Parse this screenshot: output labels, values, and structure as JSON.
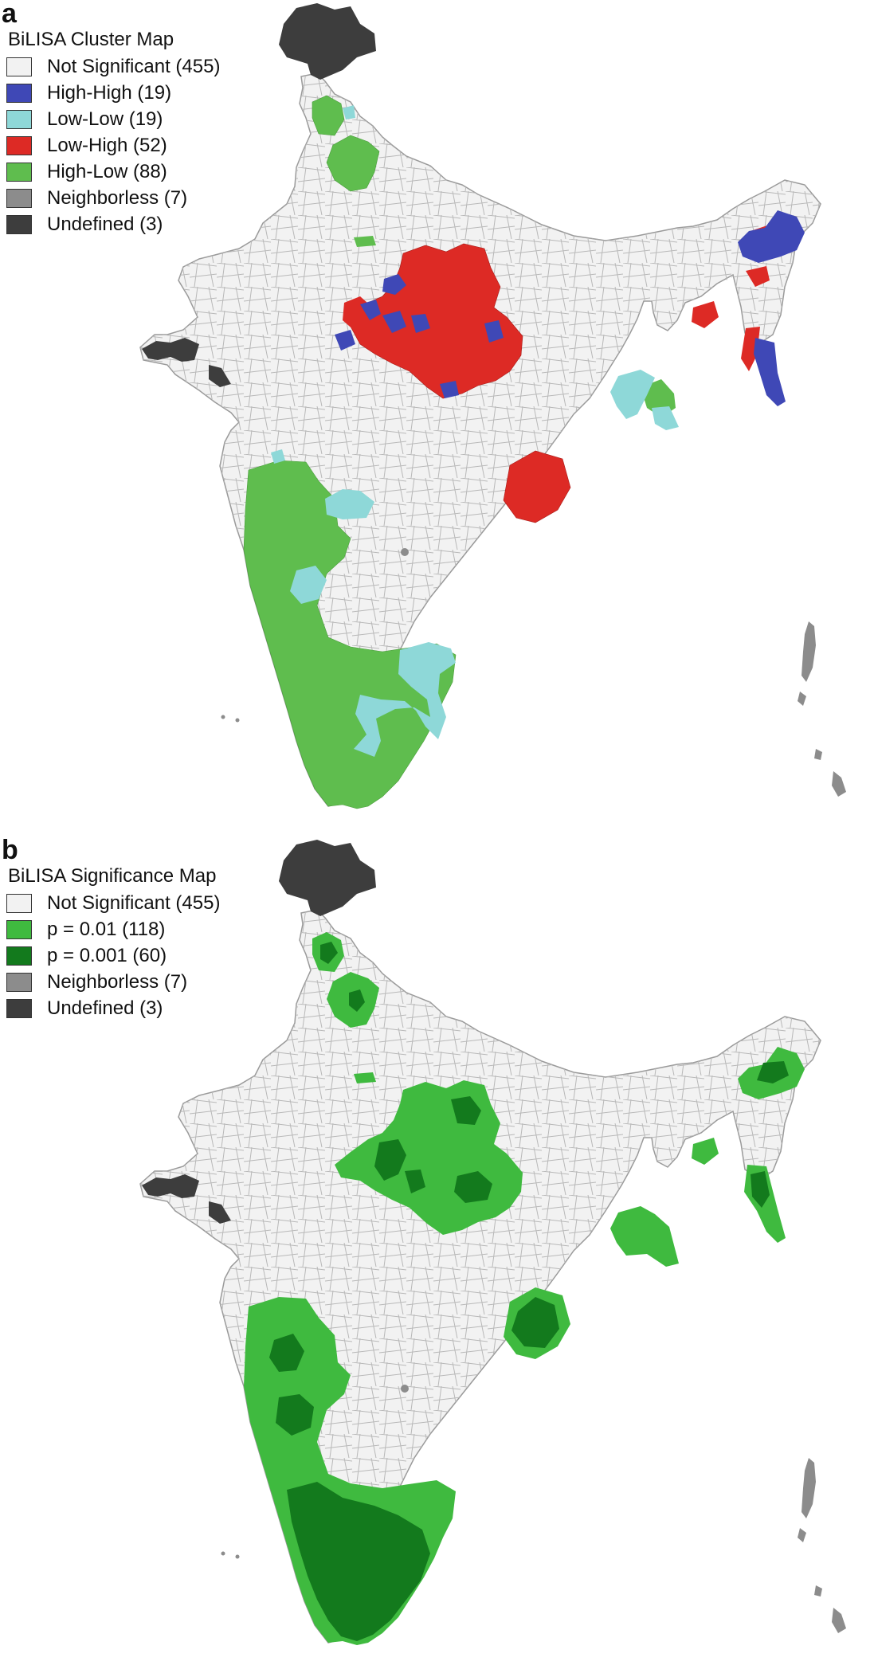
{
  "panel_a": {
    "letter": "a",
    "legend_title": "BiLISA Cluster Map",
    "legend": [
      {
        "label": "Not Significant (455)",
        "color": "#f2f2f2"
      },
      {
        "label": "High-High (19)",
        "color": "#3f48b6"
      },
      {
        "label": "Low-Low (19)",
        "color": "#8ed8d8"
      },
      {
        "label": "Low-High (52)",
        "color": "#dd2a25"
      },
      {
        "label": "High-Low (88)",
        "color": "#5fbd4e"
      },
      {
        "label": "Neighborless (7)",
        "color": "#8c8c8c"
      },
      {
        "label": "Undefined (3)",
        "color": "#3d3d3d"
      }
    ]
  },
  "panel_b": {
    "letter": "b",
    "legend_title": "BiLISA Significance Map",
    "legend": [
      {
        "label": "Not Significant (455)",
        "color": "#f2f2f2"
      },
      {
        "label": "p = 0.01 (118)",
        "color": "#3fba3f"
      },
      {
        "label": "p = 0.001 (60)",
        "color": "#137a1d"
      },
      {
        "label": "Neighborless (7)",
        "color": "#8c8c8c"
      },
      {
        "label": "Undefined (3)",
        "color": "#3d3d3d"
      }
    ]
  },
  "map_colors": {
    "land": "#f2f2f2",
    "border": "#b8b8b8"
  }
}
